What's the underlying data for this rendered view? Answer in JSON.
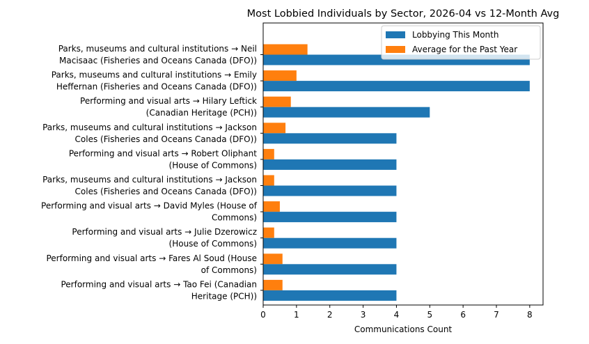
{
  "chart_data": {
    "type": "bar",
    "orientation": "horizontal",
    "title": "Most Lobbied Individuals by Sector, 2026-04 vs 12-Month Avg",
    "xlabel": "Communications Count",
    "ylabel": "",
    "xlim": [
      0,
      8.4
    ],
    "xticks": [
      0,
      1,
      2,
      3,
      4,
      5,
      6,
      7,
      8
    ],
    "grid": false,
    "legend_position": "top-right",
    "categories": [
      [
        "Parks, museums and cultural institutions → Neil",
        "Macisaac (Fisheries and Oceans Canada (DFO))"
      ],
      [
        "Parks, museums and cultural institutions → Emily",
        "Heffernan (Fisheries and Oceans Canada (DFO))"
      ],
      [
        "Performing and visual arts → Hilary Leftick",
        "(Canadian Heritage (PCH))"
      ],
      [
        "Parks, museums and cultural institutions → Jackson",
        "Coles (Fisheries and Oceans Canada (DFO))"
      ],
      [
        "Performing and visual arts → Robert Oliphant",
        "(House of Commons)"
      ],
      [
        "Parks, museums and cultural institutions → Jackson",
        "Coles (Fisheries and Oceans Canada (DFO))"
      ],
      [
        "Performing and visual arts → David Myles (House of",
        "Commons)"
      ],
      [
        "Performing and visual arts → Julie Dzerowicz",
        "(House of Commons)"
      ],
      [
        "Performing and visual arts → Fares Al Soud (House",
        "of Commons)"
      ],
      [
        "Performing and visual arts → Tao Fei (Canadian",
        "Heritage (PCH))"
      ]
    ],
    "series": [
      {
        "name": "Lobbying This Month",
        "color": "#1f77b4",
        "values": [
          8,
          8,
          5,
          4,
          4,
          4,
          4,
          4,
          4,
          4
        ]
      },
      {
        "name": "Average for the Past Year",
        "color": "#ff7f0e",
        "values": [
          1.33,
          1.0,
          0.83,
          0.67,
          0.33,
          0.33,
          0.5,
          0.33,
          0.58,
          0.58
        ]
      }
    ]
  }
}
